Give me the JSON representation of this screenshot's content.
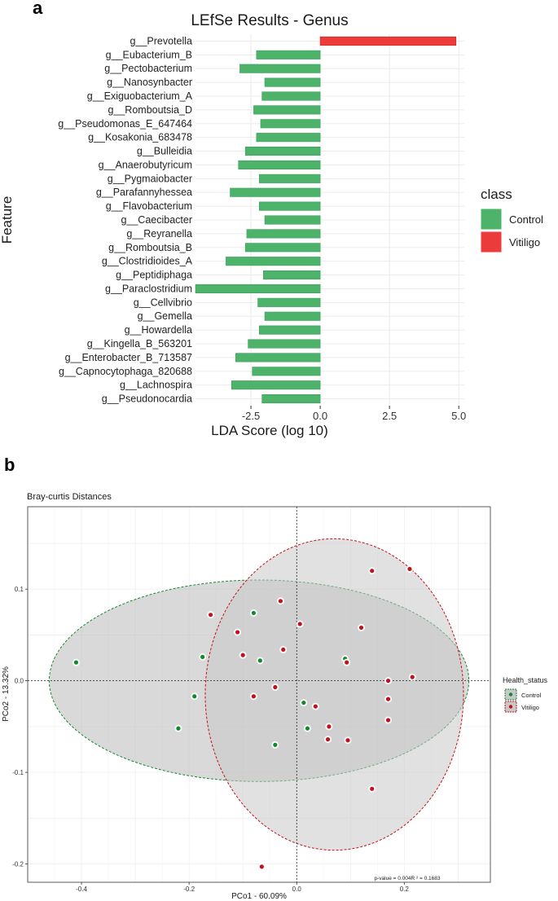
{
  "chart_data": [
    {
      "panel_label": "a",
      "type": "bar",
      "title": "LEfSe Results - Genus",
      "xlabel": "LDA Score (log 10)",
      "ylabel": "Feature",
      "xlim": [
        -4.5,
        5.2
      ],
      "xticks": [
        -2.5,
        0.0,
        2.5,
        5.0
      ],
      "xtick_labels": [
        "-2.5",
        "0.0",
        "2.5",
        "5.0"
      ],
      "grid": true,
      "legend": {
        "title": "class",
        "position": "right",
        "entries": [
          {
            "name": "Control",
            "color": "#4db36b"
          },
          {
            "name": "Vitiligo",
            "color": "#ec3b3b"
          }
        ]
      },
      "categories": [
        "g__Prevotella",
        "g__Eubacterium_B",
        "g__Pectobacterium",
        "g__Nanosynbacter",
        "g__Exiguobacterium_A",
        "g__Romboutsia_D",
        "g__Pseudomonas_E_647464",
        "g__Kosakonia_683478",
        "g__Bulleidia",
        "g__Anaerobutyricum",
        "g__Pygmaiobacter",
        "g__Parafannyhessea",
        "g__Flavobacterium",
        "g__Caecibacter",
        "g__Reyranella",
        "g__Romboutsia_B",
        "g__Clostridioides_A",
        "g__Peptidiphaga",
        "g__Paraclostridium",
        "g__Cellvibrio",
        "g__Gemella",
        "g__Howardella",
        "g__Kingella_B_563201",
        "g__Enterobacter_B_713587",
        "g__Capnocytophaga_820688",
        "g__Lachnospira",
        "g__Pseudonocardia"
      ],
      "values": [
        4.9,
        -2.3,
        -2.9,
        -2.0,
        -2.1,
        -2.4,
        -2.15,
        -2.3,
        -2.7,
        -2.95,
        -2.2,
        -3.25,
        -2.2,
        -2.0,
        -2.65,
        -2.7,
        -3.4,
        -2.05,
        -4.5,
        -2.25,
        -2.0,
        -2.2,
        -2.6,
        -3.05,
        -2.45,
        -3.2,
        -2.1
      ],
      "class": [
        "Vitiligo",
        "Control",
        "Control",
        "Control",
        "Control",
        "Control",
        "Control",
        "Control",
        "Control",
        "Control",
        "Control",
        "Control",
        "Control",
        "Control",
        "Control",
        "Control",
        "Control",
        "Control",
        "Control",
        "Control",
        "Control",
        "Control",
        "Control",
        "Control",
        "Control",
        "Control",
        "Control"
      ]
    },
    {
      "panel_label": "b",
      "type": "scatter",
      "title": "Bray-curtis Distances",
      "xlabel": "PCo1 - 60.09%",
      "ylabel": "PCo2 - 13.32%",
      "xlim": [
        -0.5,
        0.36
      ],
      "ylim": [
        -0.22,
        0.19
      ],
      "xticks": [
        -0.4,
        -0.2,
        0.0,
        0.2
      ],
      "xtick_labels": [
        "-0.4",
        "-0.2",
        "0.0",
        "0.2"
      ],
      "yticks": [
        -0.2,
        -0.1,
        0.0,
        0.1
      ],
      "ytick_labels": [
        "-0.2",
        "-0.1",
        "0.0",
        "0.1"
      ],
      "grid": true,
      "annotation": "p-value = 0.004R ² = 0.1683",
      "legend": {
        "title": "Health_status",
        "position": "right",
        "entries": [
          {
            "name": "Control",
            "color": "#118a2e"
          },
          {
            "name": "Vitiligo",
            "color": "#c1121c"
          }
        ]
      },
      "ellipses": [
        {
          "group": "Control",
          "center": [
            -0.07,
            0.0
          ],
          "semi_axes": [
            0.39,
            0.11
          ],
          "angle_deg": 0
        },
        {
          "group": "Vitiligo",
          "center": [
            0.07,
            -0.015
          ],
          "semi_axes": [
            0.24,
            0.17
          ],
          "angle_deg": 0
        }
      ],
      "series": [
        {
          "name": "Control",
          "color": "#118a2e",
          "points": [
            [
              -0.41,
              0.02
            ],
            [
              -0.22,
              -0.052
            ],
            [
              -0.19,
              -0.017
            ],
            [
              -0.175,
              0.026
            ],
            [
              -0.08,
              0.074
            ],
            [
              -0.068,
              0.022
            ],
            [
              -0.04,
              -0.07
            ],
            [
              0.013,
              -0.024
            ],
            [
              0.02,
              -0.052
            ],
            [
              0.09,
              0.024
            ]
          ]
        },
        {
          "name": "Vitiligo",
          "color": "#c1121c",
          "points": [
            [
              -0.16,
              0.072
            ],
            [
              -0.11,
              0.053
            ],
            [
              -0.1,
              0.028
            ],
            [
              -0.08,
              -0.017
            ],
            [
              -0.03,
              0.087
            ],
            [
              -0.025,
              0.034
            ],
            [
              -0.04,
              -0.007
            ],
            [
              0.006,
              0.062
            ],
            [
              0.035,
              -0.028
            ],
            [
              0.06,
              -0.05
            ],
            [
              0.058,
              -0.064
            ],
            [
              0.093,
              0.02
            ],
            [
              0.095,
              -0.065
            ],
            [
              0.12,
              0.058
            ],
            [
              0.17,
              0.0
            ],
            [
              0.17,
              -0.02
            ],
            [
              0.17,
              -0.043
            ],
            [
              0.14,
              0.12
            ],
            [
              0.21,
              0.122
            ],
            [
              0.215,
              0.004
            ],
            [
              0.14,
              -0.118
            ],
            [
              -0.065,
              -0.203
            ]
          ]
        }
      ]
    }
  ]
}
